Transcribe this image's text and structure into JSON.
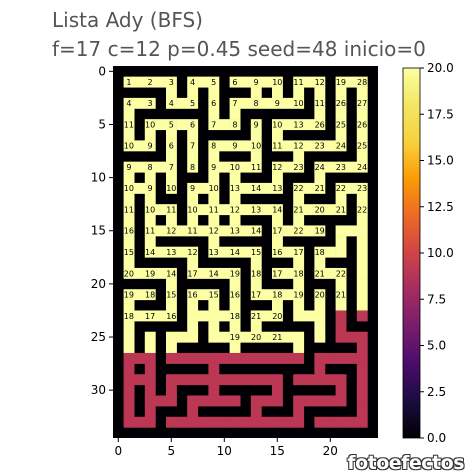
{
  "chart_data": {
    "type": "heatmap",
    "title_line1": "Lista Ady (BFS)",
    "title_line2": "f=17 c=12 p=0.45 seed=48 inicio=0",
    "rows": 35,
    "cols": 25,
    "xticks": [
      0,
      5,
      10,
      15,
      20
    ],
    "yticks": [
      0,
      5,
      10,
      15,
      20,
      25,
      30
    ],
    "colorbar": {
      "min": 0,
      "max": 20,
      "ticks": [
        "0.0",
        "2.5",
        "5.0",
        "7.5",
        "10.0",
        "12.5",
        "15.0",
        "17.5",
        "20.0"
      ]
    },
    "colors": {
      "wall": "#000004",
      "unvisited": "#bc3754",
      "visited": "#fcffa4"
    },
    "wall_value": 0,
    "unvisited_value": 10,
    "visited_cutoff_row": 27,
    "maze_seed": 48,
    "labels": [
      [
        1,
        1,
        1
      ],
      [
        1,
        3,
        2
      ],
      [
        1,
        5,
        3
      ],
      [
        1,
        7,
        4
      ],
      [
        1,
        9,
        5
      ],
      [
        1,
        11,
        6
      ],
      [
        1,
        13,
        9
      ],
      [
        1,
        15,
        10
      ],
      [
        1,
        17,
        11
      ],
      [
        1,
        19,
        12
      ],
      [
        1,
        21,
        19
      ],
      [
        1,
        23,
        28
      ],
      [
        3,
        1,
        4
      ],
      [
        3,
        3,
        3
      ],
      [
        3,
        5,
        4
      ],
      [
        3,
        7,
        5
      ],
      [
        3,
        9,
        6
      ],
      [
        3,
        11,
        7
      ],
      [
        3,
        13,
        8
      ],
      [
        3,
        15,
        9
      ],
      [
        3,
        17,
        10
      ],
      [
        3,
        19,
        11
      ],
      [
        3,
        21,
        26
      ],
      [
        3,
        23,
        27
      ],
      [
        5,
        1,
        11
      ],
      [
        5,
        3,
        10
      ],
      [
        5,
        5,
        5
      ],
      [
        5,
        7,
        6
      ],
      [
        5,
        9,
        7
      ],
      [
        5,
        11,
        8
      ],
      [
        5,
        13,
        9
      ],
      [
        5,
        15,
        10
      ],
      [
        5,
        17,
        13
      ],
      [
        5,
        19,
        26
      ],
      [
        5,
        21,
        25
      ],
      [
        5,
        23,
        26
      ],
      [
        7,
        1,
        10
      ],
      [
        7,
        3,
        9
      ],
      [
        7,
        5,
        6
      ],
      [
        7,
        7,
        7
      ],
      [
        7,
        9,
        8
      ],
      [
        7,
        11,
        9
      ],
      [
        7,
        13,
        10
      ],
      [
        7,
        15,
        11
      ],
      [
        7,
        17,
        12
      ],
      [
        7,
        19,
        23
      ],
      [
        7,
        21,
        24
      ],
      [
        7,
        23,
        25
      ],
      [
        9,
        1,
        9
      ],
      [
        9,
        3,
        8
      ],
      [
        9,
        5,
        7
      ],
      [
        9,
        7,
        8
      ],
      [
        9,
        9,
        9
      ],
      [
        9,
        11,
        10
      ],
      [
        9,
        13,
        11
      ],
      [
        9,
        15,
        12
      ],
      [
        9,
        17,
        23
      ],
      [
        9,
        19,
        24
      ],
      [
        9,
        21,
        23
      ],
      [
        9,
        23,
        24
      ],
      [
        11,
        1,
        10
      ],
      [
        11,
        3,
        9
      ],
      [
        11,
        5,
        10
      ],
      [
        11,
        7,
        9
      ],
      [
        11,
        9,
        10
      ],
      [
        11,
        11,
        13
      ],
      [
        11,
        13,
        14
      ],
      [
        11,
        15,
        13
      ],
      [
        11,
        17,
        22
      ],
      [
        11,
        19,
        21
      ],
      [
        11,
        21,
        22
      ],
      [
        11,
        23,
        23
      ],
      [
        13,
        1,
        11
      ],
      [
        13,
        3,
        10
      ],
      [
        13,
        5,
        11
      ],
      [
        13,
        7,
        10
      ],
      [
        13,
        9,
        11
      ],
      [
        13,
        11,
        12
      ],
      [
        13,
        13,
        13
      ],
      [
        13,
        15,
        14
      ],
      [
        13,
        17,
        21
      ],
      [
        13,
        19,
        20
      ],
      [
        13,
        21,
        21
      ],
      [
        13,
        23,
        22
      ],
      [
        15,
        1,
        16
      ],
      [
        15,
        3,
        11
      ],
      [
        15,
        5,
        12
      ],
      [
        15,
        7,
        11
      ],
      [
        15,
        9,
        12
      ],
      [
        15,
        11,
        13
      ],
      [
        15,
        13,
        14
      ],
      [
        15,
        15,
        17
      ],
      [
        15,
        17,
        22
      ],
      [
        15,
        19,
        19
      ],
      [
        17,
        1,
        15
      ],
      [
        17,
        3,
        14
      ],
      [
        17,
        5,
        13
      ],
      [
        17,
        7,
        12
      ],
      [
        17,
        9,
        13
      ],
      [
        17,
        11,
        14
      ],
      [
        17,
        13,
        15
      ],
      [
        17,
        15,
        16
      ],
      [
        17,
        17,
        17
      ],
      [
        17,
        19,
        18
      ],
      [
        19,
        1,
        20
      ],
      [
        19,
        3,
        19
      ],
      [
        19,
        5,
        14
      ],
      [
        19,
        7,
        17
      ],
      [
        19,
        9,
        14
      ],
      [
        19,
        11,
        19
      ],
      [
        19,
        13,
        18
      ],
      [
        19,
        15,
        17
      ],
      [
        19,
        17,
        18
      ],
      [
        19,
        19,
        21
      ],
      [
        19,
        21,
        22
      ],
      [
        21,
        1,
        19
      ],
      [
        21,
        3,
        18
      ],
      [
        21,
        5,
        15
      ],
      [
        21,
        7,
        16
      ],
      [
        21,
        9,
        15
      ],
      [
        21,
        11,
        16
      ],
      [
        21,
        13,
        17
      ],
      [
        21,
        15,
        18
      ],
      [
        21,
        17,
        19
      ],
      [
        21,
        19,
        20
      ],
      [
        21,
        21,
        21
      ],
      [
        23,
        1,
        18
      ],
      [
        23,
        3,
        17
      ],
      [
        23,
        5,
        16
      ],
      [
        23,
        11,
        18
      ],
      [
        23,
        13,
        21
      ],
      [
        23,
        15,
        20
      ],
      [
        25,
        11,
        19
      ],
      [
        25,
        13,
        20
      ],
      [
        25,
        15,
        21
      ]
    ]
  }
}
